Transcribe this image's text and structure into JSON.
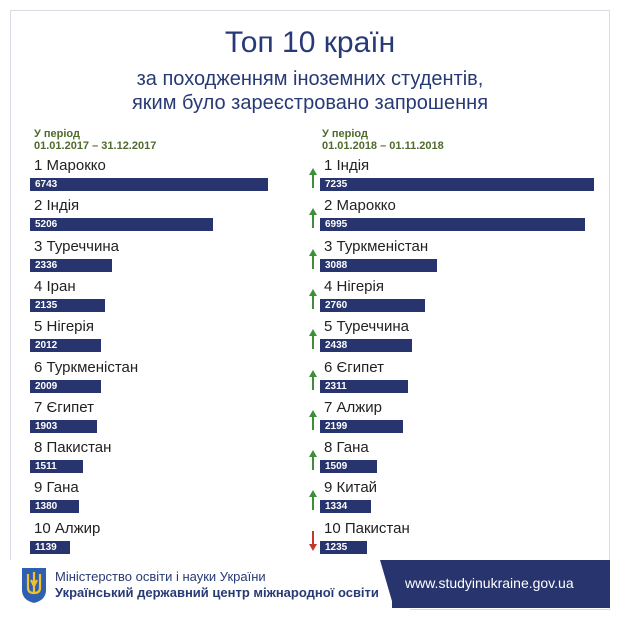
{
  "header": {
    "title": "Топ 10 країн",
    "subtitle_line1": "за походженням іноземних студентів,",
    "subtitle_line2": "яким було зареєстровано запрошення"
  },
  "colors": {
    "bar": "#27346d",
    "up_arrow": "#3f8f3a",
    "down_arrow": "#c0392b",
    "text_navy": "#283a75",
    "period_text": "#4f6b2c"
  },
  "chart_data": [
    {
      "type": "bar",
      "period_line1": "У період",
      "period_line2": "01.01.2017 –  31.12.2017",
      "xlim": [
        0,
        7235
      ],
      "rows": [
        {
          "label": "1 Марокко",
          "value": 6743
        },
        {
          "label": "2 Індія",
          "value": 5206
        },
        {
          "label": "3 Туреччина",
          "value": 2336
        },
        {
          "label": "4 Іран",
          "value": 2135
        },
        {
          "label": "5 Нігерія",
          "value": 2012
        },
        {
          "label": "6 Туркменістан",
          "value": 2009
        },
        {
          "label": "7 Єгипет",
          "value": 1903
        },
        {
          "label": "8 Пакистан",
          "value": 1511
        },
        {
          "label": "9 Гана",
          "value": 1380
        },
        {
          "label": "10 Алжир",
          "value": 1139
        }
      ]
    },
    {
      "type": "bar",
      "period_line1": "У період",
      "period_line2": "01.01.2018 –  01.11.2018",
      "xlim": [
        0,
        7235
      ],
      "rows": [
        {
          "label": "1 Індія",
          "value": 7235,
          "trend": "up"
        },
        {
          "label": "2 Марокко",
          "value": 6995,
          "trend": "up"
        },
        {
          "label": "3 Туркменістан",
          "value": 3088,
          "trend": "up"
        },
        {
          "label": "4 Нігерія",
          "value": 2760,
          "trend": "up"
        },
        {
          "label": "5 Туреччина",
          "value": 2438,
          "trend": "up"
        },
        {
          "label": "6 Єгипет",
          "value": 2311,
          "trend": "up"
        },
        {
          "label": "7 Алжир",
          "value": 2199,
          "trend": "up"
        },
        {
          "label": "8 Гана",
          "value": 1509,
          "trend": "up"
        },
        {
          "label": "9 Китай",
          "value": 1334,
          "trend": "up"
        },
        {
          "label": "10 Пакистан",
          "value": 1235,
          "trend": "down"
        }
      ]
    }
  ],
  "footer": {
    "ministry": "Міністерство освіти і науки України",
    "center": "Український державний центр міжнародної освіти",
    "url": "www.studyinukraine.gov.ua",
    "emblem_icon": "trident-icon"
  }
}
